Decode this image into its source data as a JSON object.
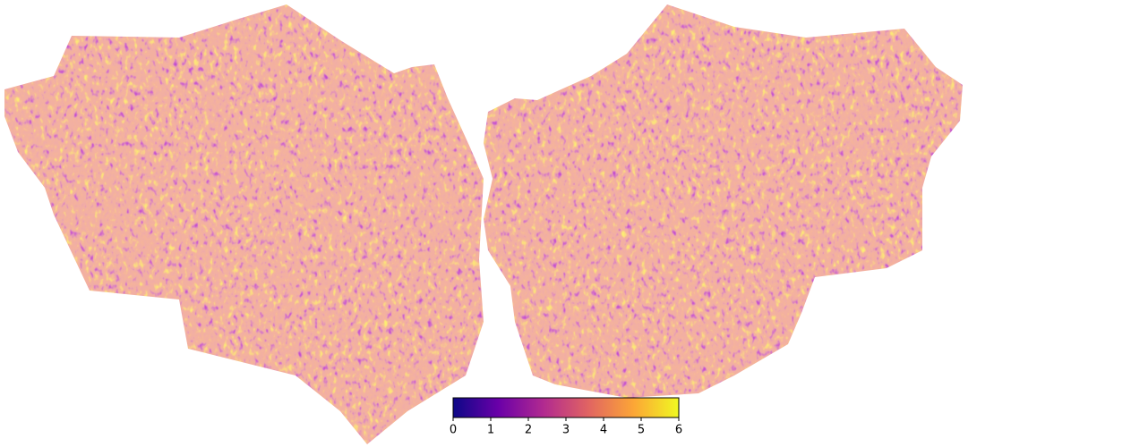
{
  "chart_data": {
    "type": "flatmap",
    "colors": [
      "#0d0887",
      "#6a00a8",
      "#b12a90",
      "#e16462",
      "#fca636",
      "#f0f921"
    ],
    "clim": [
      0,
      6
    ],
    "cticks": [
      0,
      1,
      2,
      3,
      4,
      5,
      6
    ]
  }
}
